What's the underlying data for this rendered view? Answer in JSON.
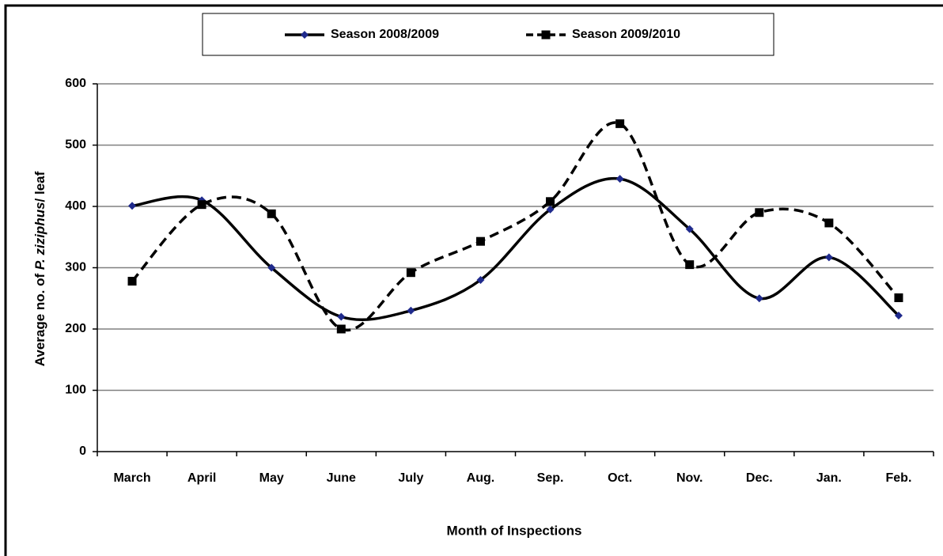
{
  "chart_data": {
    "type": "line",
    "x_label": "Month of Inspections",
    "y_label": [
      "Average no. of ",
      "P. ziziphus",
      "/ leaf"
    ],
    "categories": [
      "March",
      "April",
      "May",
      "June",
      "July",
      "Aug.",
      "Sep.",
      "Oct.",
      "Nov.",
      "Dec.",
      "Jan.",
      "Feb."
    ],
    "series": [
      {
        "name": "Season 2008/2009",
        "color": "#000000",
        "marker": "diamond",
        "marker_color": "#1f2a8c",
        "line_style": "solid",
        "values": [
          401,
          410,
          300,
          220,
          230,
          280,
          395,
          445,
          363,
          250,
          317,
          222
        ]
      },
      {
        "name": "Season 2009/2010",
        "color": "#000000",
        "marker": "square",
        "marker_color": "#000000",
        "line_style": "dashed",
        "values": [
          278,
          403,
          388,
          200,
          292,
          343,
          408,
          535,
          305,
          390,
          373,
          251
        ]
      }
    ],
    "ylim": [
      0,
      600
    ],
    "yticks": [
      0,
      100,
      200,
      300,
      400,
      500,
      600
    ],
    "grid": true,
    "smooth": true,
    "legend": "top"
  }
}
